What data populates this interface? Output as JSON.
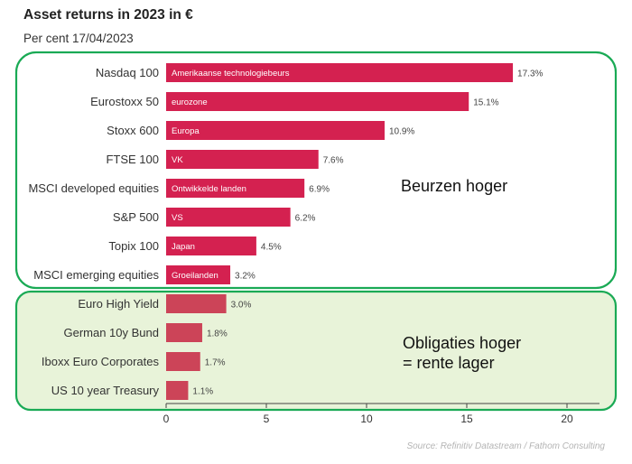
{
  "title": "Asset returns in 2023 in €",
  "subtitle": "Per cent 17/04/2023",
  "source": "Source: Refinitiv Datastream / Fathom Consulting",
  "chart_data": {
    "type": "bar",
    "orientation": "horizontal",
    "categories": [
      "Nasdaq 100",
      "Eurostoxx 50",
      "Stoxx 600",
      "FTSE 100",
      "MSCI developed equities",
      "S&P 500",
      "Topix 100",
      "MSCI emerging equities",
      "Euro High Yield",
      "German 10y Bund",
      "Iboxx Euro Corporates",
      "US 10 year Treasury"
    ],
    "values": [
      17.3,
      15.1,
      10.9,
      7.6,
      6.9,
      6.2,
      4.5,
      3.2,
      3.0,
      1.8,
      1.7,
      1.1
    ],
    "value_labels": [
      "17.3%",
      "15.1%",
      "10.9%",
      "7.6%",
      "6.9%",
      "6.2%",
      "4.5%",
      "3.2%",
      "3.0%",
      "1.8%",
      "1.7%",
      "1.1%"
    ],
    "bar_annotations": [
      "Amerikaanse technologiebeurs",
      "eurozone",
      "Europa",
      "VK",
      "Ontwikkelde landen",
      "VS",
      "Japan",
      "Groeilanden",
      "",
      "",
      "",
      ""
    ],
    "group": [
      "equity",
      "equity",
      "equity",
      "equity",
      "equity",
      "equity",
      "equity",
      "equity",
      "bond",
      "bond",
      "bond",
      "bond"
    ],
    "xticks": [
      0,
      5,
      10,
      15,
      20
    ],
    "xlim": [
      0,
      21
    ],
    "xlabel": "",
    "ylabel": "",
    "grid": false,
    "colors": {
      "equity_bar": "#d42150",
      "bond_bar": "#cc4458",
      "group_border": "#1aaa55",
      "bond_fill": "#e8f3d9",
      "axis": "#444444",
      "label_text": "#333333"
    },
    "group_annotations": {
      "equity": [
        "Beurzen hoger"
      ],
      "bond": [
        "Obligaties hoger",
        "= rente lager"
      ]
    }
  }
}
